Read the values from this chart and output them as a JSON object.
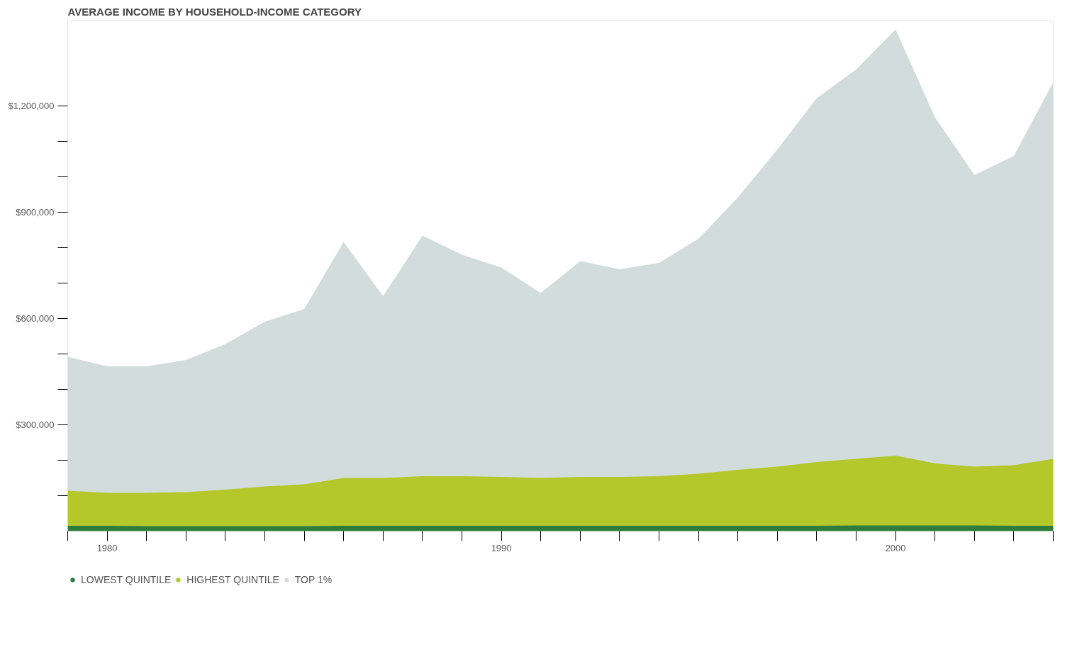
{
  "chart_data": {
    "type": "area",
    "title": "AVERAGE INCOME BY HOUSEHOLD-INCOME CATEGORY",
    "x": [
      1979,
      1980,
      1981,
      1982,
      1983,
      1984,
      1985,
      1986,
      1987,
      1988,
      1989,
      1990,
      1991,
      1992,
      1993,
      1994,
      1995,
      1996,
      1997,
      1998,
      1999,
      2000,
      2001,
      2002,
      2003,
      2004
    ],
    "series": [
      {
        "name": "LOWEST QUINTILE",
        "color": "#2f7d3c",
        "values": [
          15000,
          15000,
          14000,
          14000,
          14000,
          14000,
          14000,
          15000,
          15000,
          15000,
          15000,
          15000,
          15000,
          15000,
          15000,
          15000,
          15000,
          15000,
          15000,
          15000,
          16000,
          16000,
          16000,
          16000,
          15000,
          15000
        ]
      },
      {
        "name": "HIGHEST QUINTILE",
        "color": "#b4c82c",
        "values": [
          114000,
          108000,
          108000,
          110000,
          117000,
          126000,
          132000,
          150000,
          150000,
          155000,
          155000,
          153000,
          150000,
          153000,
          153000,
          155000,
          162000,
          173000,
          182000,
          195000,
          204000,
          213000,
          191000,
          182000,
          186000,
          204000
        ]
      },
      {
        "name": "TOP 1%",
        "color": "#d3dcdc",
        "values": [
          492000,
          465000,
          465000,
          483000,
          528000,
          591000,
          627000,
          816000,
          663000,
          834000,
          780000,
          744000,
          672000,
          762000,
          739000,
          757000,
          825000,
          942000,
          1077000,
          1222000,
          1303000,
          1416000,
          1168000,
          1005000,
          1059000,
          1267000
        ]
      }
    ],
    "xticks": [
      {
        "value": 1979,
        "label": null
      },
      1980,
      {
        "value": 1981,
        "label": null
      },
      {
        "value": 1982,
        "label": null
      },
      {
        "value": 1983,
        "label": null
      },
      {
        "value": 1984,
        "label": null
      },
      {
        "value": 1985,
        "label": null
      },
      {
        "value": 1986,
        "label": null
      },
      {
        "value": 1987,
        "label": null
      },
      {
        "value": 1988,
        "label": null
      },
      {
        "value": 1989,
        "label": null
      },
      1990,
      {
        "value": 1991,
        "label": null
      },
      {
        "value": 1992,
        "label": null
      },
      {
        "value": 1993,
        "label": null
      },
      {
        "value": 1994,
        "label": null
      },
      {
        "value": 1995,
        "label": null
      },
      {
        "value": 1996,
        "label": null
      },
      {
        "value": 1997,
        "label": null
      },
      {
        "value": 1998,
        "label": null
      },
      {
        "value": 1999,
        "label": null
      },
      2000,
      {
        "value": 2001,
        "label": null
      },
      {
        "value": 2002,
        "label": null
      },
      {
        "value": 2003,
        "label": null
      },
      {
        "value": 2004,
        "label": null
      }
    ],
    "yticks": [
      {
        "value": 100000,
        "label": null
      },
      {
        "value": 200000,
        "label": null
      },
      {
        "value": 300000,
        "label": "$300,000"
      },
      {
        "value": 400000,
        "label": null
      },
      {
        "value": 500000,
        "label": null
      },
      {
        "value": 600000,
        "label": "$600,000"
      },
      {
        "value": 700000,
        "label": null
      },
      {
        "value": 800000,
        "label": null
      },
      {
        "value": 900000,
        "label": "$900,000"
      },
      {
        "value": 1000000,
        "label": null
      },
      {
        "value": 1100000,
        "label": null
      },
      {
        "value": 1200000,
        "label": "$1,200,000"
      }
    ],
    "xlim": [
      1979,
      2004
    ],
    "ylim": [
      0,
      1440000
    ],
    "grid": false,
    "legend": "bottom"
  }
}
